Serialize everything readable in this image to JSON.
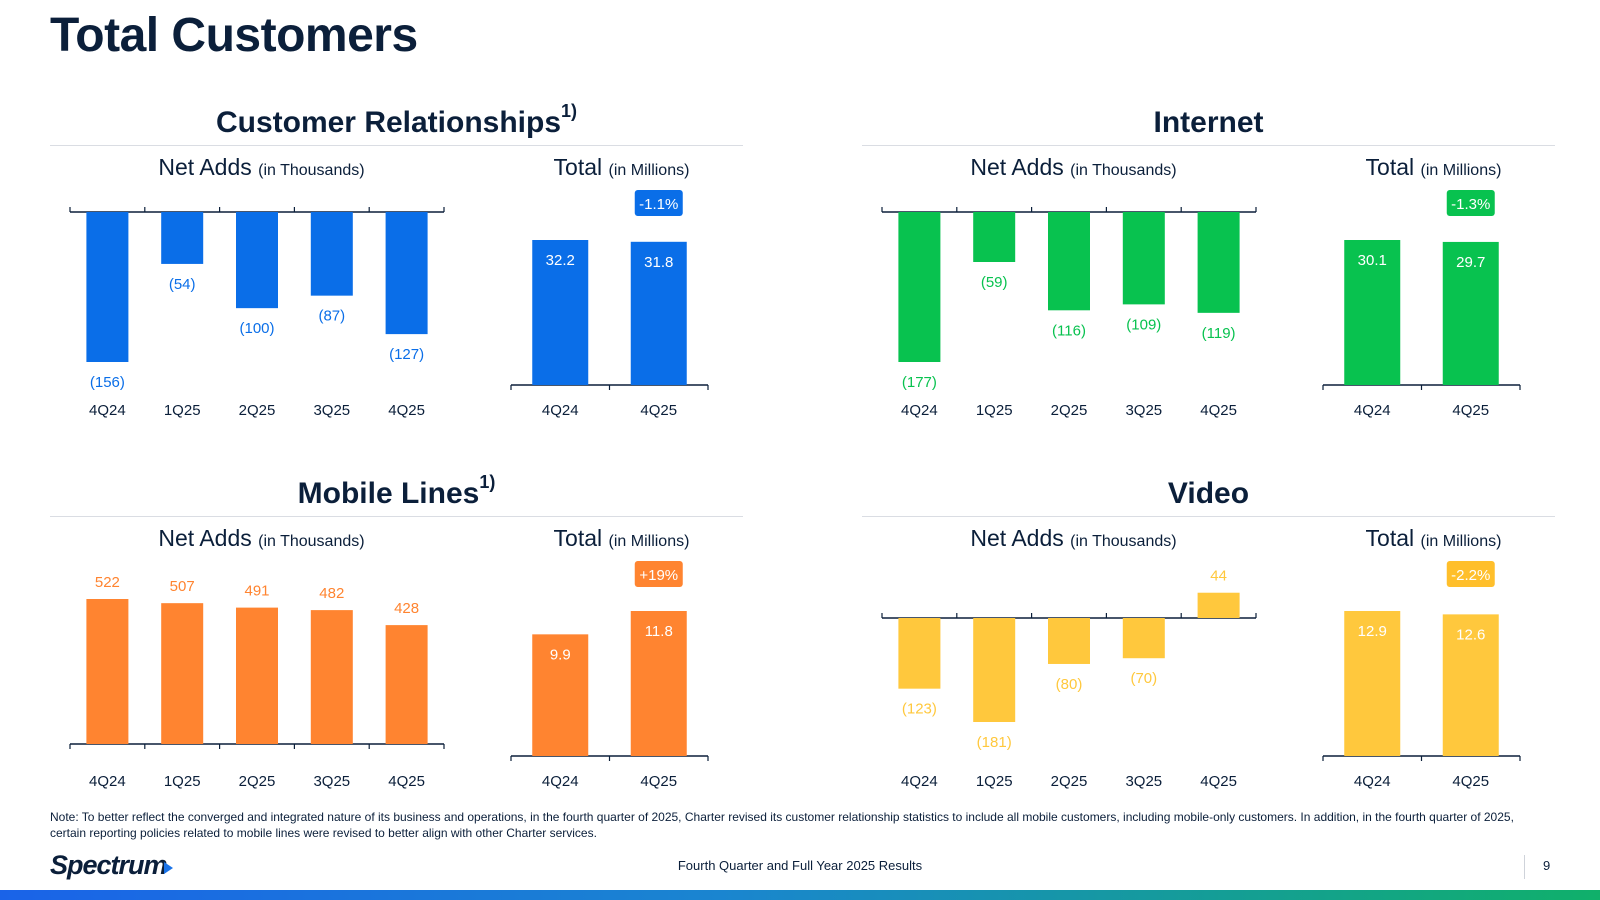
{
  "title": "Total Customers",
  "colors": {
    "cr": "#0a6ee8",
    "internet": "#08c24f",
    "mobile": "#ff8430",
    "video": "#ffc83d",
    "badge_video": "#ffbf2b",
    "axis": "#0b1f3a"
  },
  "sections": [
    {
      "key": "cr",
      "title": "Customer Relationships",
      "footnote": "1)",
      "net_label": "Net Adds",
      "net_unit": "(in Thousands)",
      "total_label": "Total",
      "total_unit": "(in Millions)"
    },
    {
      "key": "internet",
      "title": "Internet",
      "footnote": "",
      "net_label": "Net Adds",
      "net_unit": "(in Thousands)",
      "total_label": "Total",
      "total_unit": "(in Millions)"
    },
    {
      "key": "mobile",
      "title": "Mobile Lines",
      "footnote": "1)",
      "net_label": "Net Adds",
      "net_unit": "(in Thousands)",
      "total_label": "Total",
      "total_unit": "(in Millions)"
    },
    {
      "key": "video",
      "title": "Video",
      "footnote": "",
      "net_label": "Net Adds",
      "net_unit": "(in Thousands)",
      "total_label": "Total",
      "total_unit": "(in Millions)"
    }
  ],
  "chart_data": [
    {
      "type": "bar",
      "section": "Customer Relationships",
      "metric": "Net Adds (in Thousands)",
      "categories": [
        "4Q24",
        "1Q25",
        "2Q25",
        "3Q25",
        "4Q25"
      ],
      "values": [
        -156,
        -54,
        -100,
        -87,
        -127
      ],
      "labels": [
        "(156)",
        "(54)",
        "(100)",
        "(87)",
        "(127)"
      ]
    },
    {
      "type": "bar",
      "section": "Customer Relationships",
      "metric": "Total (in Millions)",
      "categories": [
        "4Q24",
        "4Q25"
      ],
      "values": [
        32.2,
        31.8
      ],
      "labels": [
        "32.2",
        "31.8"
      ],
      "change": "-1.1%"
    },
    {
      "type": "bar",
      "section": "Internet",
      "metric": "Net Adds (in Thousands)",
      "categories": [
        "4Q24",
        "1Q25",
        "2Q25",
        "3Q25",
        "4Q25"
      ],
      "values": [
        -177,
        -59,
        -116,
        -109,
        -119
      ],
      "labels": [
        "(177)",
        "(59)",
        "(116)",
        "(109)",
        "(119)"
      ]
    },
    {
      "type": "bar",
      "section": "Internet",
      "metric": "Total (in Millions)",
      "categories": [
        "4Q24",
        "4Q25"
      ],
      "values": [
        30.1,
        29.7
      ],
      "labels": [
        "30.1",
        "29.7"
      ],
      "change": "-1.3%"
    },
    {
      "type": "bar",
      "section": "Mobile Lines",
      "metric": "Net Adds (in Thousands)",
      "categories": [
        "4Q24",
        "1Q25",
        "2Q25",
        "3Q25",
        "4Q25"
      ],
      "values": [
        522,
        507,
        491,
        482,
        428
      ],
      "labels": [
        "522",
        "507",
        "491",
        "482",
        "428"
      ]
    },
    {
      "type": "bar",
      "section": "Mobile Lines",
      "metric": "Total (in Millions)",
      "categories": [
        "4Q24",
        "4Q25"
      ],
      "values": [
        9.9,
        11.8
      ],
      "labels": [
        "9.9",
        "11.8"
      ],
      "change": "+19%"
    },
    {
      "type": "bar",
      "section": "Video",
      "metric": "Net Adds (in Thousands)",
      "categories": [
        "4Q24",
        "1Q25",
        "2Q25",
        "3Q25",
        "4Q25"
      ],
      "values": [
        -123,
        -181,
        -80,
        -70,
        44
      ],
      "labels": [
        "(123)",
        "(181)",
        "(80)",
        "(70)",
        "44"
      ]
    },
    {
      "type": "bar",
      "section": "Video",
      "metric": "Total (in Millions)",
      "categories": [
        "4Q24",
        "4Q25"
      ],
      "values": [
        12.9,
        12.6
      ],
      "labels": [
        "12.9",
        "12.6"
      ],
      "change": "-2.2%"
    }
  ],
  "note": "Note: To better reflect the converged and integrated nature of its business and operations, in the fourth quarter of 2025, Charter revised its customer relationship statistics to include all mobile customers, including mobile-only customers. In addition, in the fourth quarter of 2025, certain reporting policies related to mobile lines were revised to better align with other Charter services.",
  "footer": {
    "logo": "Spectrum",
    "text": "Fourth Quarter and Full Year 2025 Results",
    "page": "9"
  }
}
